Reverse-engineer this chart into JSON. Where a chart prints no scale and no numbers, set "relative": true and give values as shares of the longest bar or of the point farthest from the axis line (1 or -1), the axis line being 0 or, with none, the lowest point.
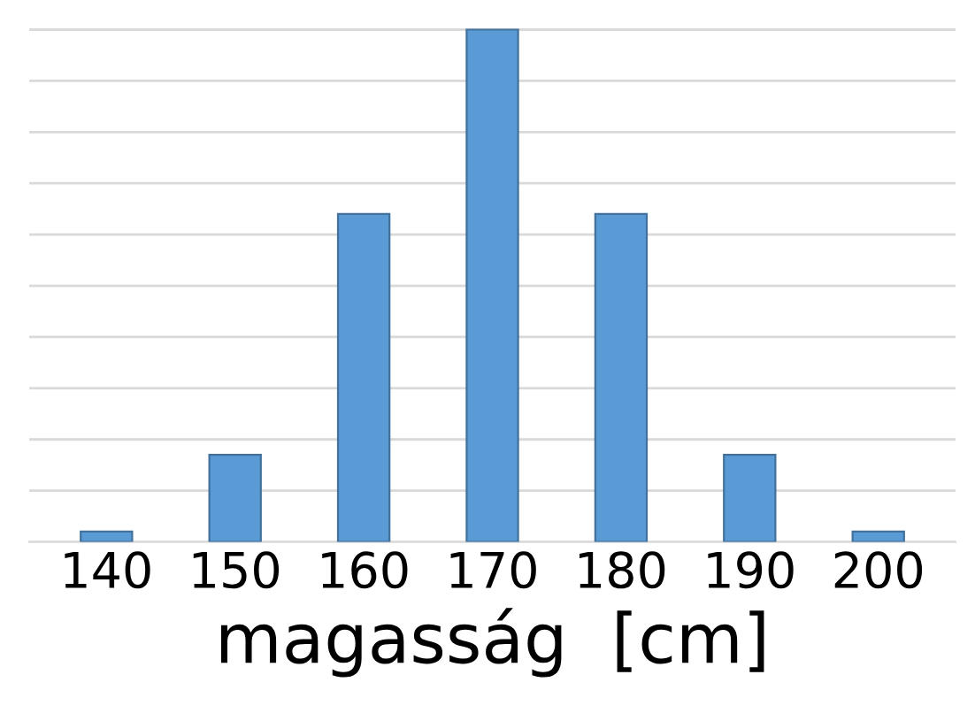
{
  "chart_data": {
    "type": "bar",
    "xlabel": "magasság  [cm]",
    "categories": [
      "140",
      "150",
      "160",
      "170",
      "180",
      "190",
      "200"
    ],
    "values": [
      0.02,
      0.17,
      0.64,
      1,
      0.64,
      0.17,
      0.02
    ],
    "color": "#5b9bd5",
    "relative": true,
    "grid": "y"
  }
}
